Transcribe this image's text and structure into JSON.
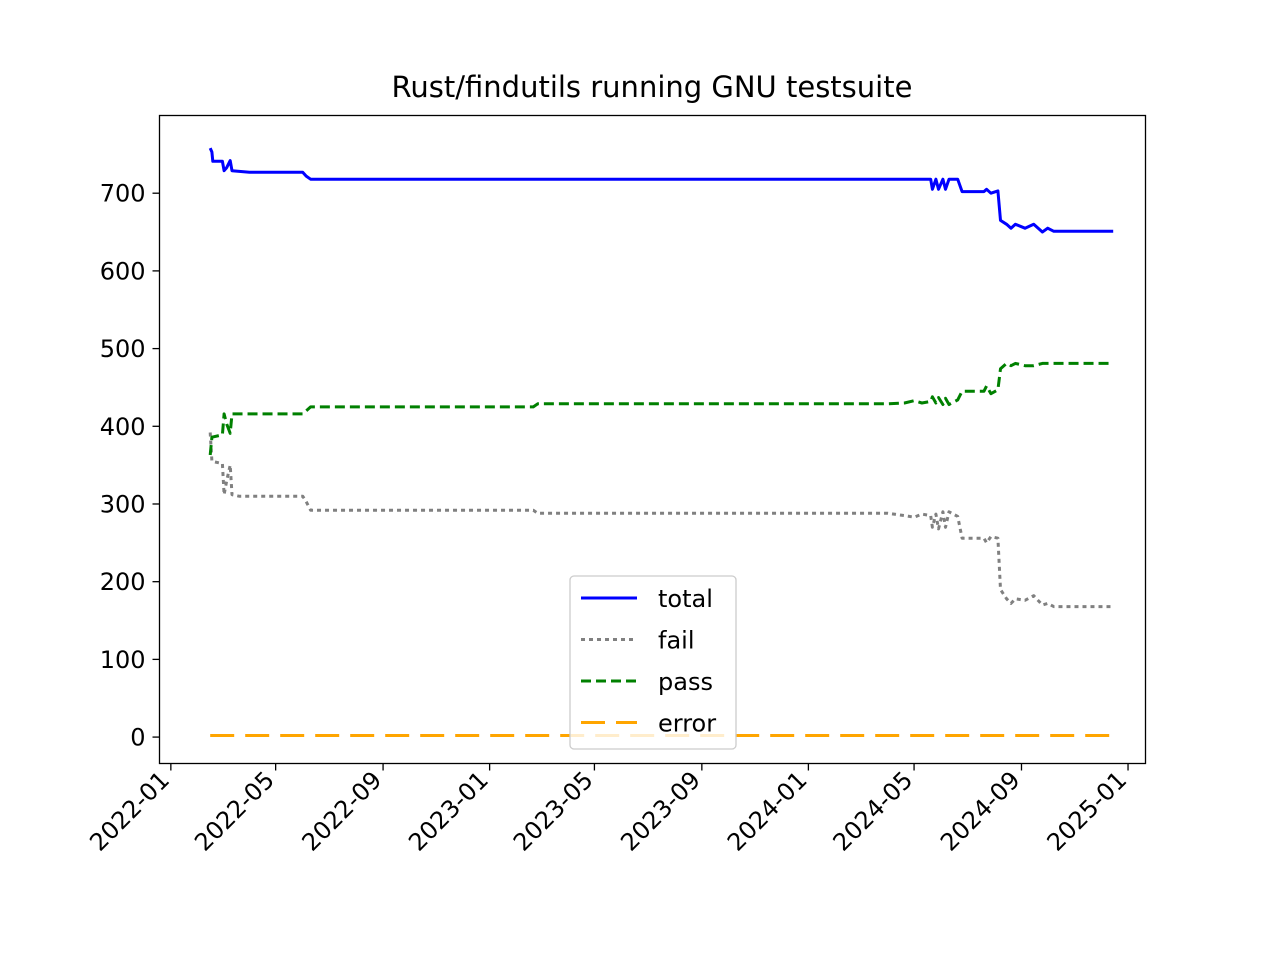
{
  "chart_data": {
    "type": "line",
    "title": "Rust/findutils running GNU testsuite",
    "xlabel": "",
    "ylabel": "",
    "x_ticks": [
      "2022-01",
      "2022-05",
      "2022-09",
      "2023-01",
      "2023-05",
      "2023-09",
      "2024-01",
      "2024-05",
      "2024-09",
      "2025-01"
    ],
    "y_ticks": [
      0,
      100,
      200,
      300,
      400,
      500,
      600,
      700
    ],
    "xlim": [
      "2021-12-19",
      "2025-01-21"
    ],
    "ylim": [
      -34,
      800
    ],
    "grid": false,
    "legend_position": "lower center",
    "series": [
      {
        "name": "total",
        "color": "#0000ff",
        "style": "solid",
        "points": [
          [
            "2022-02-15",
            758
          ],
          [
            "2022-02-17",
            753
          ],
          [
            "2022-02-18",
            741
          ],
          [
            "2022-03-01",
            741
          ],
          [
            "2022-03-03",
            729
          ],
          [
            "2022-03-06",
            733
          ],
          [
            "2022-03-10",
            742
          ],
          [
            "2022-03-12",
            729
          ],
          [
            "2022-04-01",
            727
          ],
          [
            "2022-06-01",
            727
          ],
          [
            "2022-06-05",
            722
          ],
          [
            "2022-06-10",
            718
          ],
          [
            "2024-05-20",
            718
          ],
          [
            "2024-05-22",
            705
          ],
          [
            "2024-05-26",
            718
          ],
          [
            "2024-05-29",
            705
          ],
          [
            "2024-06-03",
            718
          ],
          [
            "2024-06-06",
            705
          ],
          [
            "2024-06-10",
            718
          ],
          [
            "2024-06-20",
            718
          ],
          [
            "2024-06-25",
            702
          ],
          [
            "2024-07-20",
            702
          ],
          [
            "2024-07-23",
            705
          ],
          [
            "2024-07-28",
            700
          ],
          [
            "2024-08-05",
            703
          ],
          [
            "2024-08-08",
            665
          ],
          [
            "2024-08-15",
            660
          ],
          [
            "2024-08-20",
            655
          ],
          [
            "2024-08-25",
            660
          ],
          [
            "2024-09-05",
            655
          ],
          [
            "2024-09-15",
            660
          ],
          [
            "2024-09-25",
            650
          ],
          [
            "2024-10-01",
            655
          ],
          [
            "2024-10-08",
            651
          ],
          [
            "2024-12-15",
            651
          ]
        ]
      },
      {
        "name": "fail",
        "color": "#808080",
        "style": "dotted",
        "points": [
          [
            "2022-02-15",
            392
          ],
          [
            "2022-02-17",
            355
          ],
          [
            "2022-03-01",
            352
          ],
          [
            "2022-03-03",
            312
          ],
          [
            "2022-03-06",
            330
          ],
          [
            "2022-03-10",
            350
          ],
          [
            "2022-03-12",
            312
          ],
          [
            "2022-03-20",
            310
          ],
          [
            "2022-06-01",
            310
          ],
          [
            "2022-06-05",
            303
          ],
          [
            "2022-06-10",
            292
          ],
          [
            "2023-02-20",
            292
          ],
          [
            "2023-02-25",
            288
          ],
          [
            "2024-04-01",
            288
          ],
          [
            "2024-04-20",
            285
          ],
          [
            "2024-05-01",
            283
          ],
          [
            "2024-05-10",
            287
          ],
          [
            "2024-05-20",
            285
          ],
          [
            "2024-05-22",
            270
          ],
          [
            "2024-05-26",
            287
          ],
          [
            "2024-05-29",
            268
          ],
          [
            "2024-06-03",
            290
          ],
          [
            "2024-06-06",
            270
          ],
          [
            "2024-06-10",
            290
          ],
          [
            "2024-06-20",
            284
          ],
          [
            "2024-06-25",
            256
          ],
          [
            "2024-07-20",
            256
          ],
          [
            "2024-07-23",
            250
          ],
          [
            "2024-07-28",
            258
          ],
          [
            "2024-08-05",
            256
          ],
          [
            "2024-08-08",
            190
          ],
          [
            "2024-08-15",
            178
          ],
          [
            "2024-08-20",
            172
          ],
          [
            "2024-08-25",
            178
          ],
          [
            "2024-09-05",
            176
          ],
          [
            "2024-09-15",
            182
          ],
          [
            "2024-09-25",
            170
          ],
          [
            "2024-10-01",
            172
          ],
          [
            "2024-10-08",
            168
          ],
          [
            "2024-12-15",
            168
          ]
        ]
      },
      {
        "name": "pass",
        "color": "#008000",
        "style": "dashed",
        "points": [
          [
            "2022-02-15",
            363
          ],
          [
            "2022-02-17",
            386
          ],
          [
            "2022-03-01",
            389
          ],
          [
            "2022-03-03",
            416
          ],
          [
            "2022-03-06",
            403
          ],
          [
            "2022-03-10",
            391
          ],
          [
            "2022-03-12",
            416
          ],
          [
            "2022-06-01",
            416
          ],
          [
            "2022-06-05",
            420
          ],
          [
            "2022-06-10",
            425
          ],
          [
            "2023-02-20",
            425
          ],
          [
            "2023-02-25",
            429
          ],
          [
            "2024-04-01",
            429
          ],
          [
            "2024-04-20",
            430
          ],
          [
            "2024-05-01",
            433
          ],
          [
            "2024-05-10",
            430
          ],
          [
            "2024-05-20",
            432
          ],
          [
            "2024-05-22",
            438
          ],
          [
            "2024-05-26",
            430
          ],
          [
            "2024-05-29",
            437
          ],
          [
            "2024-06-03",
            428
          ],
          [
            "2024-06-06",
            436
          ],
          [
            "2024-06-10",
            428
          ],
          [
            "2024-06-20",
            434
          ],
          [
            "2024-06-25",
            445
          ],
          [
            "2024-07-20",
            445
          ],
          [
            "2024-07-23",
            452
          ],
          [
            "2024-07-28",
            442
          ],
          [
            "2024-08-05",
            447
          ],
          [
            "2024-08-08",
            474
          ],
          [
            "2024-08-15",
            481
          ],
          [
            "2024-08-20",
            478
          ],
          [
            "2024-08-25",
            481
          ],
          [
            "2024-09-05",
            478
          ],
          [
            "2024-09-15",
            478
          ],
          [
            "2024-09-25",
            481
          ],
          [
            "2024-12-15",
            481
          ]
        ]
      },
      {
        "name": "error",
        "color": "#ffa500",
        "style": "longdash",
        "points": [
          [
            "2022-02-15",
            2
          ],
          [
            "2024-12-15",
            2
          ]
        ]
      }
    ]
  }
}
